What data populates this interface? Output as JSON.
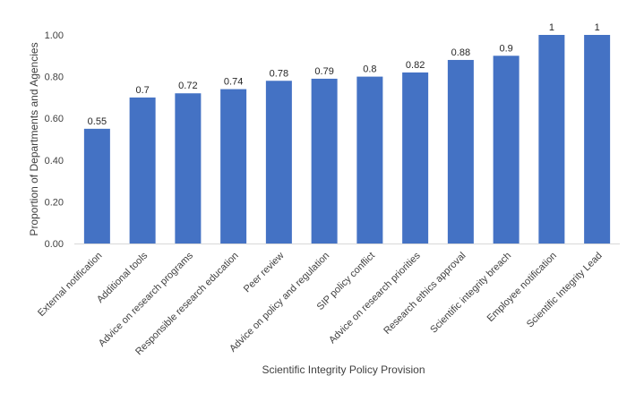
{
  "chart_data": {
    "type": "bar",
    "categories": [
      "External notification",
      "Additional tools",
      "Advice on research programs",
      "Responsible research education",
      "Peer review",
      "Advice on policy and regulation",
      "SIP policy conflict",
      "Advice on research priorities",
      "Research ethics approval",
      "Scientific integrity breach",
      "Employee notification",
      "Scientific Integrity Lead"
    ],
    "values": [
      0.55,
      0.7,
      0.72,
      0.74,
      0.78,
      0.79,
      0.8,
      0.82,
      0.88,
      0.9,
      1,
      1
    ],
    "data_labels": [
      "0.55",
      "0.7",
      "0.72",
      "0.74",
      "0.78",
      "0.79",
      "0.8",
      "0.82",
      "0.88",
      "0.9",
      "1",
      "1"
    ],
    "xlabel": "Scientific Integrity Policy Provision",
    "ylabel": "Proportion of Departments and Agencies",
    "ylim": [
      0,
      1
    ],
    "yticks": [
      0,
      0.2,
      0.4,
      0.6,
      0.8,
      1.0
    ],
    "ytick_labels": [
      "0.00",
      "0.20",
      "0.40",
      "0.60",
      "0.80",
      "1.00"
    ],
    "grid": false,
    "legend": "none",
    "bar_color": "#4472C4"
  }
}
